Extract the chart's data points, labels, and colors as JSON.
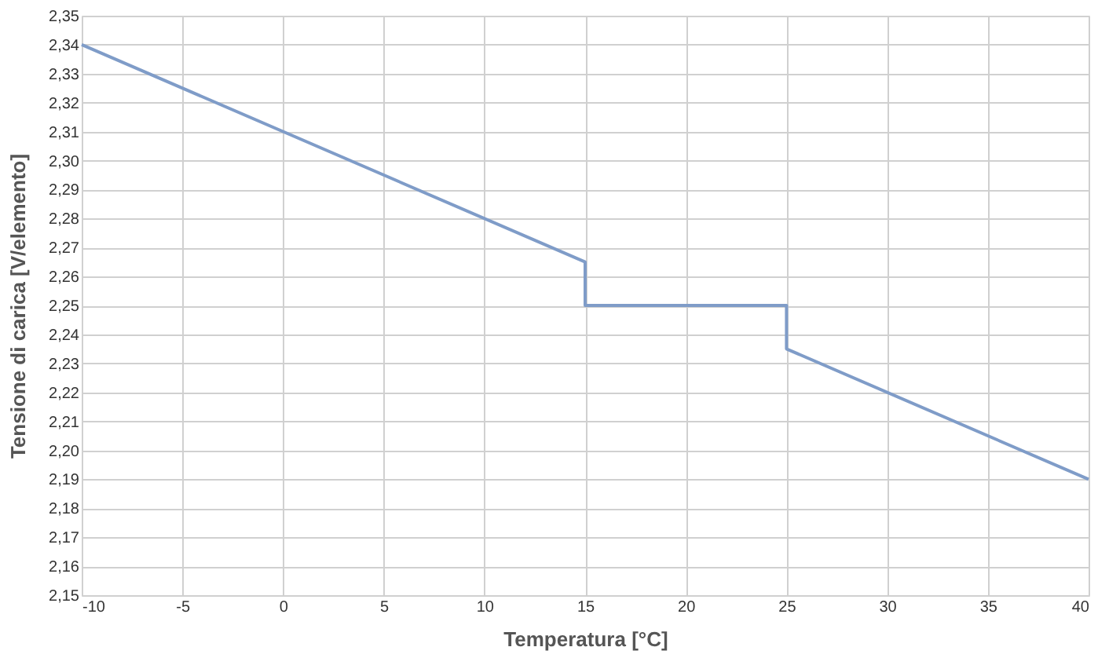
{
  "chart_data": {
    "type": "line",
    "xlabel": "Temperatura [°C]",
    "ylabel": "Tensione di carica [V/elemento]",
    "x": [
      -10,
      15,
      15,
      25,
      25,
      40
    ],
    "series": [
      {
        "color": "#7f9cc8",
        "values": [
          2.34,
          2.265,
          2.25,
          2.25,
          2.235,
          2.19
        ]
      }
    ],
    "xlim": [
      -10,
      40
    ],
    "xticks": [
      -10,
      -5,
      0,
      5,
      10,
      15,
      20,
      25,
      30,
      35,
      40
    ],
    "ylim": [
      2.15,
      2.35
    ],
    "yticks": [
      {
        "value": 2.15,
        "label": "2,15"
      },
      {
        "value": 2.16,
        "label": "2,16"
      },
      {
        "value": 2.17,
        "label": "2,17"
      },
      {
        "value": 2.18,
        "label": "2,18"
      },
      {
        "value": 2.19,
        "label": "2,19"
      },
      {
        "value": 2.2,
        "label": "2,20"
      },
      {
        "value": 2.21,
        "label": "2,21"
      },
      {
        "value": 2.22,
        "label": "2,22"
      },
      {
        "value": 2.23,
        "label": "2,23"
      },
      {
        "value": 2.24,
        "label": "2,24"
      },
      {
        "value": 2.25,
        "label": "2,25"
      },
      {
        "value": 2.26,
        "label": "2,26"
      },
      {
        "value": 2.27,
        "label": "2,27"
      },
      {
        "value": 2.28,
        "label": "2,28"
      },
      {
        "value": 2.29,
        "label": "2,29"
      },
      {
        "value": 2.3,
        "label": "2,30"
      },
      {
        "value": 2.31,
        "label": "2,31"
      },
      {
        "value": 2.32,
        "label": "2,32"
      },
      {
        "value": 2.33,
        "label": "2,33"
      },
      {
        "value": 2.34,
        "label": "2,34"
      },
      {
        "value": 2.35,
        "label": "2,35"
      }
    ],
    "grid": true,
    "marker": "none",
    "line_style": "solid"
  }
}
